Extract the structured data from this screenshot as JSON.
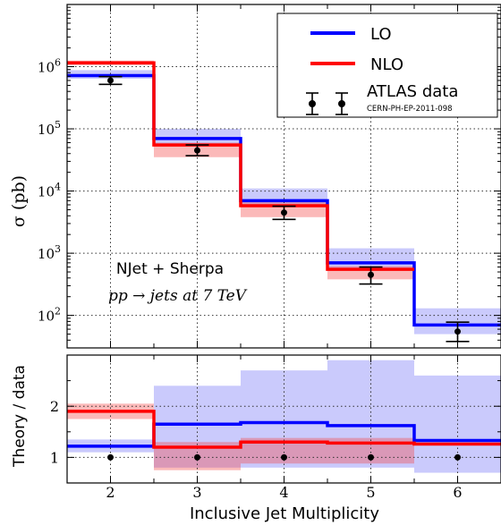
{
  "chart_data": [
    {
      "type": "line",
      "panel": "main",
      "ylabel": "σ (pb)",
      "yscale": "log",
      "ylim": [
        30.0,
        10000000.0
      ],
      "xlim": [
        1.5,
        6.5
      ],
      "yticks": [
        {
          "value": 100,
          "mantissa": "10",
          "exp": "2"
        },
        {
          "value": 1000,
          "mantissa": "10",
          "exp": "3"
        },
        {
          "value": 10000,
          "mantissa": "10",
          "exp": "4"
        },
        {
          "value": 100000,
          "mantissa": "10",
          "exp": "5"
        },
        {
          "value": 1000000,
          "mantissa": "10",
          "exp": "6"
        }
      ],
      "grid": true,
      "legend_position": "top-right",
      "annotations": {
        "line1": "NJet + Sherpa",
        "line2": "pp → jets at 7 TeV"
      },
      "x": [
        2,
        3,
        4,
        5,
        6
      ],
      "series": [
        {
          "name": "LO",
          "color": "#0000ff",
          "style": "step",
          "values": [
            720000,
            70000,
            7000,
            700,
            70
          ],
          "band_low": [
            640000,
            55000,
            5500,
            550,
            50
          ],
          "band_high": [
            880000,
            100000,
            11000,
            1200,
            130
          ]
        },
        {
          "name": "NLO",
          "color": "#ff0000",
          "style": "step",
          "values": [
            1150000,
            55000,
            5800,
            550,
            null
          ],
          "band_low": [
            1050000,
            35000,
            3800,
            380,
            null
          ],
          "band_high": [
            1250000,
            60000,
            7000,
            620,
            null
          ]
        },
        {
          "name": "ATLAS data",
          "sublabel": "CERN-PH-EP-2011-098",
          "color": "#000000",
          "style": "errorbar",
          "values": [
            600000,
            45000,
            4500,
            450,
            55
          ],
          "err_low": [
            520000,
            37000,
            3500,
            320,
            38
          ],
          "err_high": [
            690000,
            55000,
            5700,
            600,
            78
          ]
        }
      ]
    },
    {
      "type": "line",
      "panel": "ratio",
      "xlabel": "Inclusive Jet Multiplicity",
      "ylabel": "Theory / data",
      "xlim": [
        1.5,
        6.5
      ],
      "ylim": [
        0.5,
        3.0
      ],
      "xticks": [
        2,
        3,
        4,
        5,
        6
      ],
      "yticks": [
        1,
        2
      ],
      "grid": true,
      "x": [
        2,
        3,
        4,
        5,
        6
      ],
      "series": [
        {
          "name": "LO",
          "color": "#0000ff",
          "style": "step",
          "values": [
            1.22,
            1.65,
            1.68,
            1.62,
            1.33
          ],
          "band_low": [
            1.1,
            0.8,
            0.8,
            0.8,
            0.7
          ],
          "band_high": [
            1.35,
            2.4,
            2.7,
            2.9,
            2.6
          ]
        },
        {
          "name": "NLO",
          "color": "#ff0000",
          "style": "step",
          "values": [
            1.9,
            1.2,
            1.3,
            1.28,
            1.26
          ],
          "band_low": [
            1.75,
            0.75,
            0.88,
            0.88,
            null
          ],
          "band_high": [
            2.05,
            1.3,
            1.38,
            1.38,
            null
          ]
        },
        {
          "name": "data",
          "color": "#000000",
          "style": "points",
          "values": [
            1,
            1,
            1,
            1,
            1
          ]
        }
      ]
    }
  ]
}
